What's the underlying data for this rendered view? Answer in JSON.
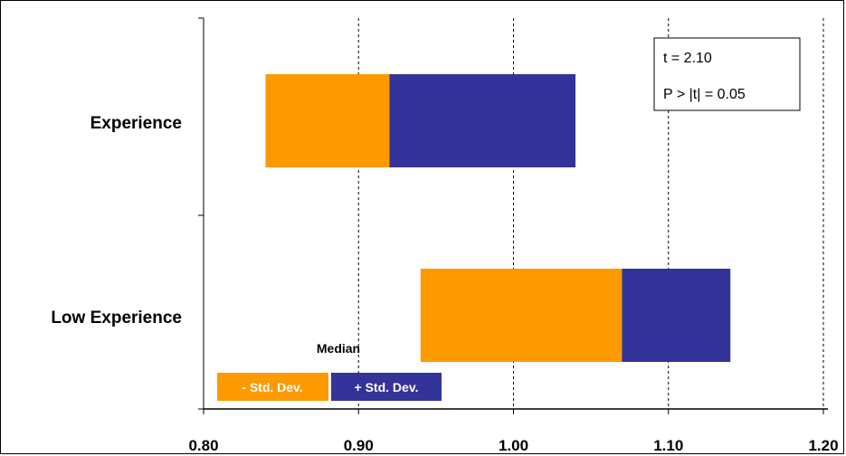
{
  "chart_data": {
    "type": "bar",
    "orientation": "horizontal",
    "stacked": true,
    "categories": [
      "Experience",
      "Low Experience"
    ],
    "series": [
      {
        "name": "- Std. Dev.",
        "color": "#FF9900",
        "ranges": [
          [
            0.84,
            0.92
          ],
          [
            0.94,
            1.07
          ]
        ]
      },
      {
        "name": "+ Std. Dev.",
        "color": "#333399",
        "ranges": [
          [
            0.92,
            1.04
          ],
          [
            1.07,
            1.14
          ]
        ]
      }
    ],
    "median": [
      0.92,
      1.07
    ],
    "xlim": [
      0.8,
      1.2
    ],
    "xticks": [
      "0.80",
      "0.90",
      "1.00",
      "1.10",
      "1.20"
    ],
    "grid": "vertical dashed",
    "legend_position": "bottom-left",
    "legend_title": "Median",
    "stats_box": {
      "position": "top-right",
      "line1": "t = 2.10",
      "line2": "P > |t| = 0.05"
    }
  }
}
